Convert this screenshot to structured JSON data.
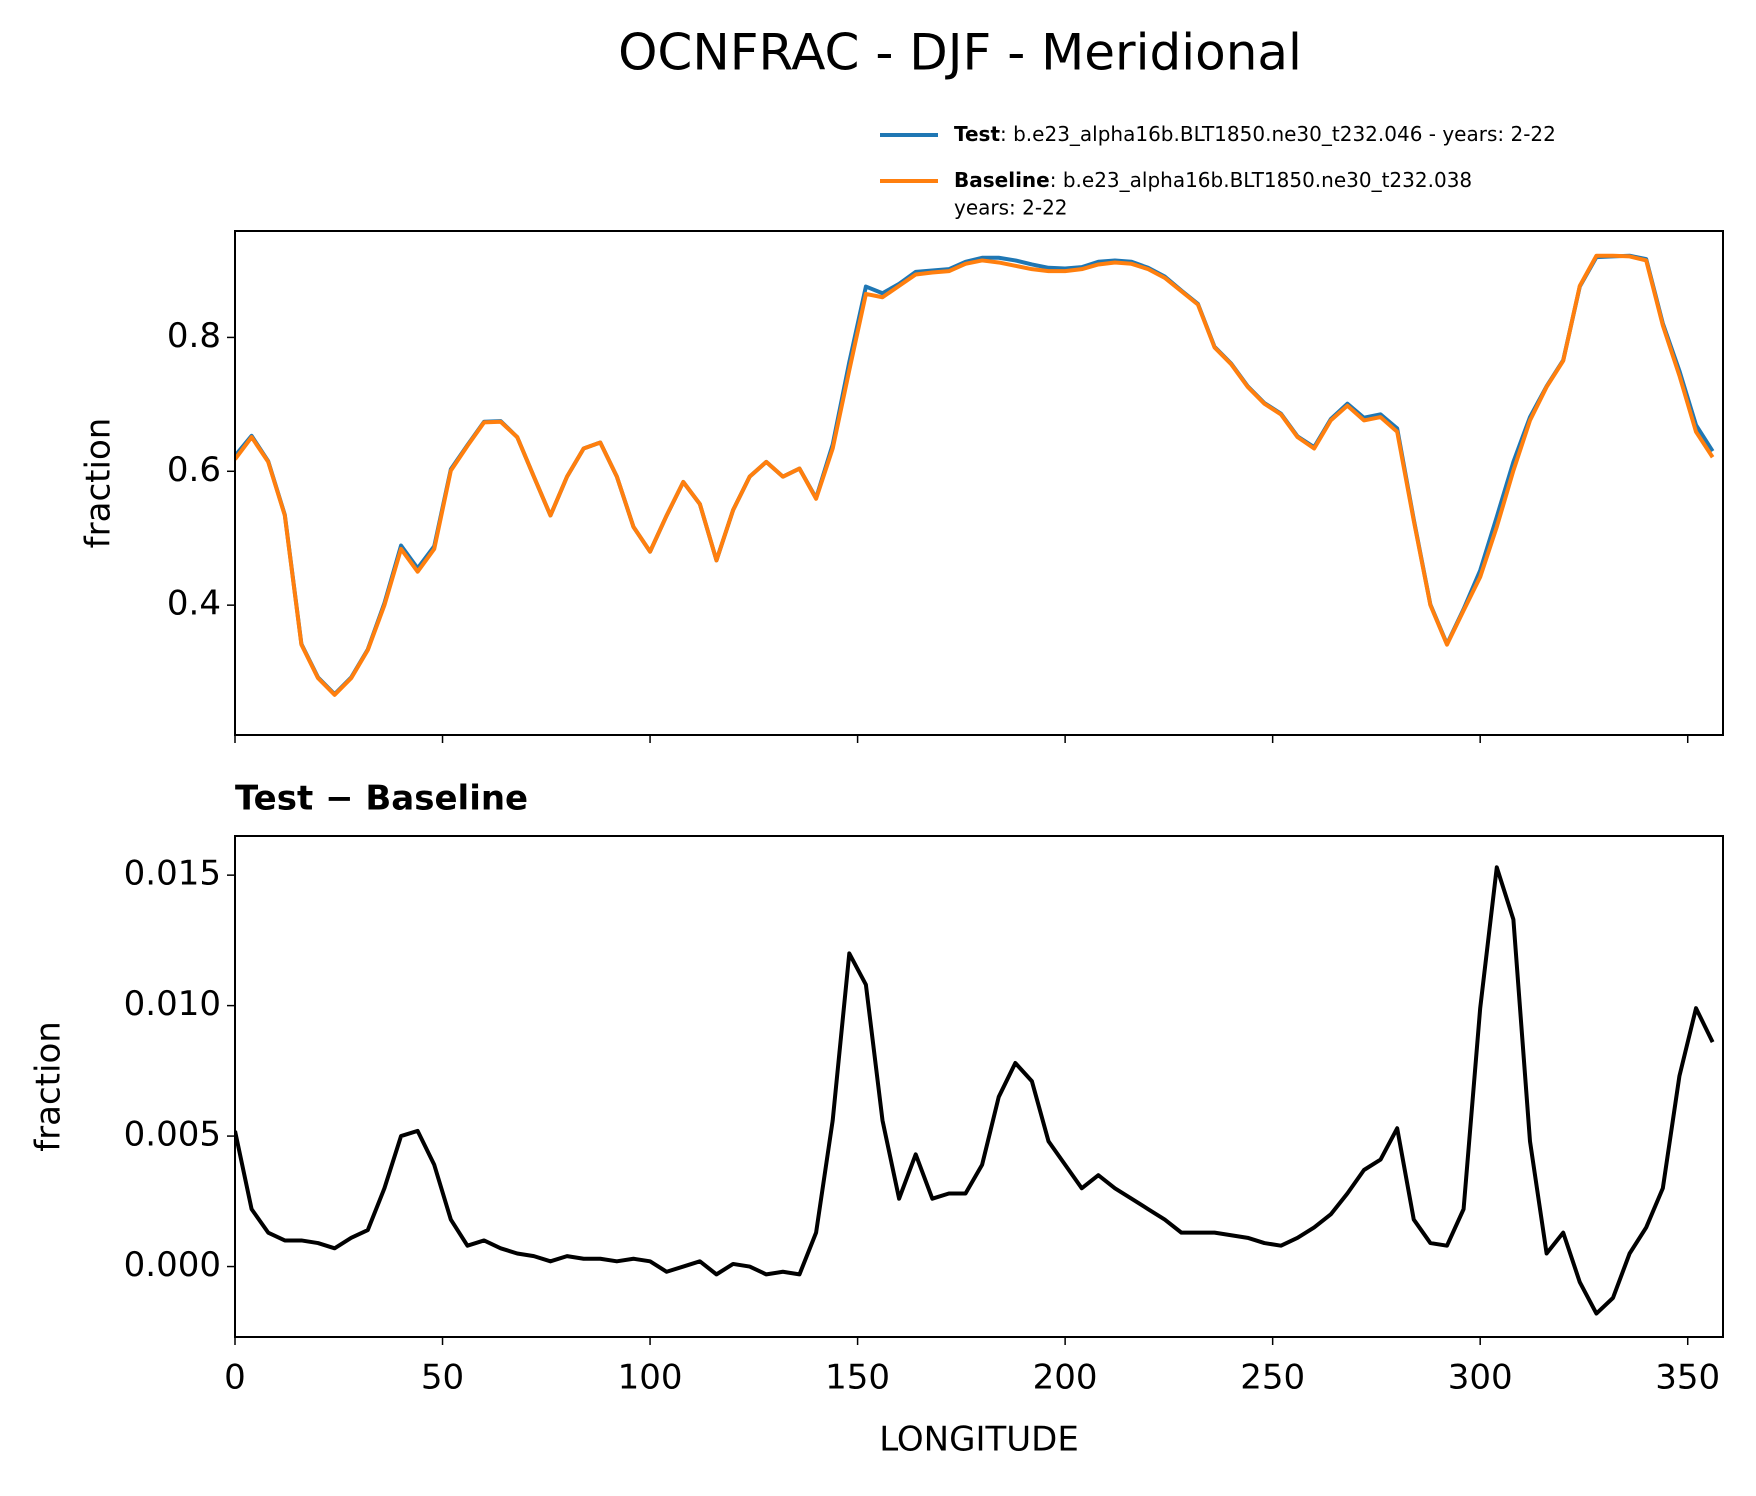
{
  "title": "OCNFRAC - DJF - Meridional",
  "chart_data": [
    {
      "type": "line",
      "ylabel": "fraction",
      "x": [
        0,
        4,
        8,
        12,
        16,
        20,
        24,
        28,
        32,
        36,
        40,
        44,
        48,
        52,
        56,
        60,
        64,
        68,
        72,
        76,
        80,
        84,
        88,
        92,
        96,
        100,
        104,
        108,
        112,
        116,
        120,
        124,
        128,
        132,
        136,
        140,
        144,
        148,
        152,
        156,
        160,
        164,
        168,
        172,
        176,
        180,
        184,
        188,
        192,
        196,
        200,
        204,
        208,
        212,
        216,
        220,
        224,
        228,
        232,
        236,
        240,
        244,
        248,
        252,
        256,
        260,
        264,
        268,
        272,
        276,
        280,
        284,
        288,
        292,
        296,
        300,
        304,
        308,
        312,
        316,
        320,
        324,
        328,
        332,
        336,
        340,
        344,
        348,
        352,
        356
      ],
      "xlim": [
        0,
        358.5
      ],
      "ylim": [
        0.206,
        0.959
      ],
      "xticks": [
        0,
        50,
        100,
        150,
        200,
        250,
        300,
        350
      ],
      "yticks": [
        0.4,
        0.6,
        0.8
      ],
      "show_xticklabels": false,
      "legend": "upper right",
      "series": [
        {
          "name": "Test",
          "color": "#1f77b4",
          "description": [
            ": b.e23_alpha16b.BLT1850.ne30_t232.046 - years: 2-22"
          ],
          "values": [
            0.623,
            0.653,
            0.615,
            0.535,
            0.342,
            0.292,
            0.267,
            0.292,
            0.334,
            0.403,
            0.489,
            0.455,
            0.488,
            0.603,
            0.639,
            0.674,
            0.675,
            0.651,
            0.592,
            0.534,
            0.592,
            0.634,
            0.643,
            0.592,
            0.517,
            0.48,
            0.534,
            0.584,
            0.551,
            0.467,
            0.542,
            0.592,
            0.614,
            0.592,
            0.604,
            0.56,
            0.64,
            0.763,
            0.876,
            0.866,
            0.88,
            0.898,
            0.9,
            0.902,
            0.913,
            0.919,
            0.919,
            0.915,
            0.909,
            0.904,
            0.903,
            0.905,
            0.913,
            0.915,
            0.913,
            0.904,
            0.891,
            0.87,
            0.85,
            0.786,
            0.761,
            0.727,
            0.702,
            0.686,
            0.652,
            0.636,
            0.678,
            0.701,
            0.68,
            0.685,
            0.664,
            0.528,
            0.401,
            0.342,
            0.394,
            0.452,
            0.532,
            0.614,
            0.681,
            0.727,
            0.766,
            0.876,
            0.92,
            0.921,
            0.922,
            0.917,
            0.821,
            0.75,
            0.669,
            0.63
          ]
        },
        {
          "name": "Baseline",
          "color": "#ff7f0e",
          "description": [
            ": b.e23_alpha16b.BLT1850.ne30_t232.038",
            "years: 2-22"
          ],
          "values": [
            0.618,
            0.651,
            0.614,
            0.534,
            0.341,
            0.291,
            0.266,
            0.291,
            0.333,
            0.4,
            0.484,
            0.45,
            0.484,
            0.601,
            0.638,
            0.673,
            0.674,
            0.651,
            0.592,
            0.534,
            0.592,
            0.634,
            0.643,
            0.592,
            0.517,
            0.48,
            0.534,
            0.584,
            0.551,
            0.467,
            0.542,
            0.592,
            0.614,
            0.592,
            0.604,
            0.559,
            0.634,
            0.751,
            0.865,
            0.86,
            0.877,
            0.894,
            0.897,
            0.899,
            0.91,
            0.915,
            0.912,
            0.907,
            0.902,
            0.899,
            0.899,
            0.902,
            0.909,
            0.912,
            0.91,
            0.902,
            0.889,
            0.869,
            0.849,
            0.785,
            0.76,
            0.726,
            0.701,
            0.685,
            0.651,
            0.634,
            0.676,
            0.698,
            0.676,
            0.681,
            0.659,
            0.526,
            0.4,
            0.341,
            0.392,
            0.442,
            0.517,
            0.601,
            0.676,
            0.726,
            0.765,
            0.877,
            0.922,
            0.922,
            0.921,
            0.915,
            0.818,
            0.743,
            0.659,
            0.621
          ]
        }
      ]
    },
    {
      "type": "line",
      "title": "Test − Baseline",
      "xlabel": "LONGITUDE",
      "ylabel": "fraction",
      "x": [
        0,
        4,
        8,
        12,
        16,
        20,
        24,
        28,
        32,
        36,
        40,
        44,
        48,
        52,
        56,
        60,
        64,
        68,
        72,
        76,
        80,
        84,
        88,
        92,
        96,
        100,
        104,
        108,
        112,
        116,
        120,
        124,
        128,
        132,
        136,
        140,
        144,
        148,
        152,
        156,
        160,
        164,
        168,
        172,
        176,
        180,
        184,
        188,
        192,
        196,
        200,
        204,
        208,
        212,
        216,
        220,
        224,
        228,
        232,
        236,
        240,
        244,
        248,
        252,
        256,
        260,
        264,
        268,
        272,
        276,
        280,
        284,
        288,
        292,
        296,
        300,
        304,
        308,
        312,
        316,
        320,
        324,
        328,
        332,
        336,
        340,
        344,
        348,
        352,
        356
      ],
      "xlim": [
        0,
        358.5
      ],
      "ylim": [
        -0.0027,
        0.0165
      ],
      "xticks": [
        0,
        50,
        100,
        150,
        200,
        250,
        300,
        350
      ],
      "yticks": [
        {
          "value": 0,
          "label": "0.000"
        },
        {
          "value": 0.005,
          "label": "0.005"
        },
        {
          "value": 0.01,
          "label": "0.010"
        },
        {
          "value": 0.015,
          "label": "0.015"
        }
      ],
      "show_xticklabels": true,
      "series": [
        {
          "color": "#000000",
          "values": [
            0.0052,
            0.0022,
            0.0013,
            0.001,
            0.001,
            0.0009,
            0.0007,
            0.0011,
            0.0014,
            0.003,
            0.005,
            0.0052,
            0.0039,
            0.0018,
            0.0008,
            0.001,
            0.0007,
            0.0005,
            0.0004,
            0.0002,
            0.0004,
            0.0003,
            0.0003,
            0.0002,
            0.0003,
            0.0002,
            -0.0002,
            0.0,
            0.0002,
            -0.0003,
            0.0001,
            0.0,
            -0.0003,
            -0.0002,
            -0.0003,
            0.0013,
            0.0056,
            0.012,
            0.0108,
            0.0056,
            0.0026,
            0.0043,
            0.0026,
            0.0028,
            0.0028,
            0.0039,
            0.0065,
            0.0078,
            0.0071,
            0.0048,
            0.0039,
            0.003,
            0.0035,
            0.003,
            0.0026,
            0.0022,
            0.0018,
            0.0013,
            0.0013,
            0.0013,
            0.0012,
            0.0011,
            0.0009,
            0.0008,
            0.0011,
            0.0015,
            0.002,
            0.0028,
            0.0037,
            0.0041,
            0.0053,
            0.0018,
            0.0009,
            0.0008,
            0.0022,
            0.0099,
            0.0153,
            0.0133,
            0.0048,
            0.0005,
            0.0013,
            -0.0006,
            -0.0018,
            -0.0012,
            0.0005,
            0.0015,
            0.003,
            0.0073,
            0.0099,
            0.0086
          ]
        }
      ]
    }
  ]
}
